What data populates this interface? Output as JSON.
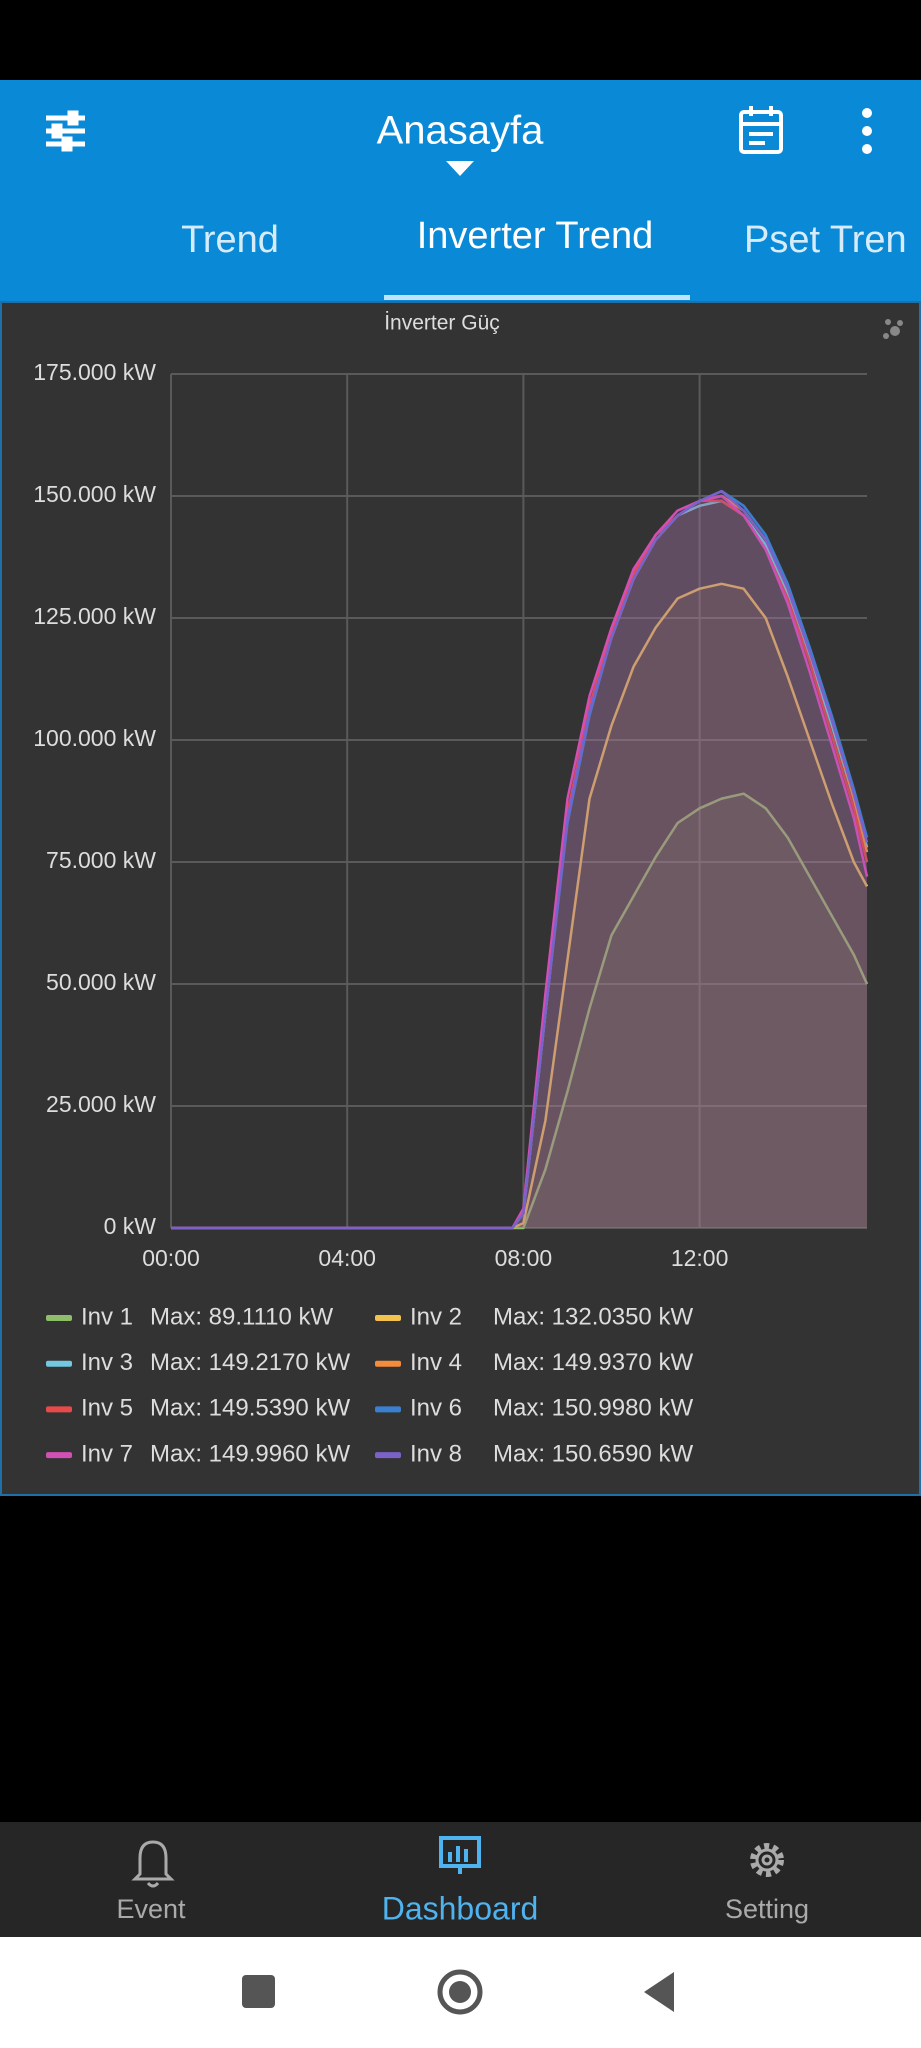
{
  "app_bar": {
    "title": "Anasayfa"
  },
  "tabs": {
    "items": [
      "Trend",
      "Inverter Trend",
      "Pset Tren"
    ],
    "active": 1
  },
  "chart_data": {
    "type": "line",
    "title": "İnverter Güç",
    "x": [
      0,
      7.75,
      8,
      8.5,
      9,
      9.5,
      10,
      10.5,
      11,
      11.5,
      12,
      12.5,
      13,
      13.5,
      14,
      14.5,
      15,
      15.5,
      15.8
    ],
    "xlim": [
      0,
      15.8
    ],
    "xticks": [
      {
        "value": 0,
        "label": "00:00"
      },
      {
        "value": 4,
        "label": "04:00"
      },
      {
        "value": 8,
        "label": "08:00"
      },
      {
        "value": 12,
        "label": "12:00"
      }
    ],
    "ylim": [
      0,
      175
    ],
    "yticks": [
      {
        "value": 0,
        "label": "0 kW"
      },
      {
        "value": 25,
        "label": "25.000 kW"
      },
      {
        "value": 50,
        "label": "50.000 kW"
      },
      {
        "value": 75,
        "label": "75.000 kW"
      },
      {
        "value": 100,
        "label": "100.000 kW"
      },
      {
        "value": 125,
        "label": "125.000 kW"
      },
      {
        "value": 150,
        "label": "150.000 kW"
      },
      {
        "value": 175,
        "label": "175.000 kW"
      }
    ],
    "grid": true,
    "series": [
      {
        "name": "Inv 1",
        "legend_label": "Max: 89.1110 kW",
        "color": "#8fbe6a",
        "values": [
          0,
          0,
          0,
          12,
          28,
          45,
          60,
          68,
          76,
          83,
          86,
          88,
          89,
          86,
          80,
          72,
          64,
          56,
          50
        ]
      },
      {
        "name": "Inv 2",
        "legend_label": "Max: 132.0350 kW",
        "color": "#f2c14e",
        "values": [
          0,
          0,
          1,
          22,
          55,
          88,
          103,
          115,
          123,
          129,
          131,
          132,
          131,
          125,
          113,
          100,
          87,
          75,
          70
        ]
      },
      {
        "name": "Inv 3",
        "legend_label": "Max: 149.2170 kW",
        "color": "#73c8e0",
        "values": [
          0,
          0,
          3,
          44,
          84,
          106,
          121,
          133,
          141,
          146,
          148,
          149,
          146,
          140,
          130,
          117,
          103,
          88,
          78
        ]
      },
      {
        "name": "Inv 4",
        "legend_label": "Max: 149.9370 kW",
        "color": "#f58c3c",
        "values": [
          0,
          0,
          3,
          44,
          84,
          106,
          121,
          133,
          141,
          146,
          149,
          150,
          147,
          141,
          131,
          118,
          104,
          88,
          77
        ]
      },
      {
        "name": "Inv 5",
        "legend_label": "Max: 149.5390 kW",
        "color": "#e84a4a",
        "values": [
          0,
          0,
          3,
          45,
          85,
          107,
          122,
          134,
          142,
          146,
          149,
          149,
          146,
          139,
          129,
          116,
          101,
          86,
          75
        ]
      },
      {
        "name": "Inv 6",
        "legend_label": "Max: 150.9980 kW",
        "color": "#3a7fd0",
        "values": [
          0,
          0,
          3,
          44,
          83,
          105,
          121,
          133,
          141,
          146,
          149,
          151,
          148,
          142,
          132,
          119,
          105,
          90,
          80
        ]
      },
      {
        "name": "Inv 7",
        "legend_label": "Max: 149.9960 kW",
        "color": "#d24fb4",
        "values": [
          0,
          0,
          4,
          48,
          88,
          109,
          123,
          135,
          142,
          147,
          149,
          150,
          146,
          139,
          128,
          114,
          99,
          84,
          72
        ]
      },
      {
        "name": "Inv 8",
        "legend_label": "Max: 150.6590 kW",
        "color": "#7a62c8",
        "values": [
          0,
          0,
          3,
          44,
          84,
          106,
          121,
          133,
          141,
          146,
          149,
          151,
          147,
          141,
          131,
          118,
          104,
          89,
          79
        ]
      }
    ]
  },
  "bottom_nav": {
    "items": [
      "Event",
      "Dashboard",
      "Setting"
    ],
    "active": 1
  }
}
